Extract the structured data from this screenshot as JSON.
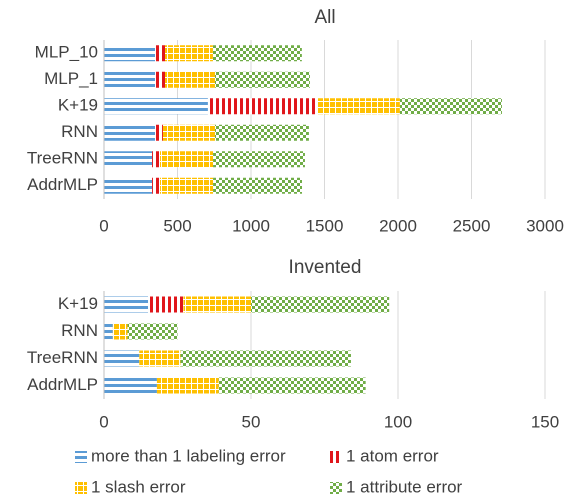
{
  "chart_data": [
    {
      "type": "stacked-barh",
      "title": "All",
      "categories": [
        "MLP_10",
        "MLP_1",
        "K+19",
        "RNN",
        "TreeRNN",
        "AddrMLP"
      ],
      "series": [
        {
          "name": "more than 1 labeling error",
          "color": "#5b9bd5",
          "values": [
            347,
            347,
            707,
            347,
            327,
            327
          ]
        },
        {
          "name": "1 atom error",
          "color": "#e0161b",
          "values": [
            68,
            68,
            748,
            54,
            54,
            54
          ]
        },
        {
          "name": "1 slash error",
          "color": "#ffc000",
          "values": [
            326,
            340,
            558,
            354,
            361,
            361
          ]
        },
        {
          "name": "1 attribute error",
          "color": "#70ad47",
          "values": [
            605,
            646,
            694,
            639,
            625,
            605
          ]
        }
      ],
      "xlim": [
        0,
        3000
      ],
      "xticks": [
        0,
        500,
        1000,
        1500,
        2000,
        2500,
        3000
      ],
      "grid": true
    },
    {
      "type": "stacked-barh",
      "title": "Invented",
      "categories": [
        "K+19",
        "RNN",
        "TreeRNN",
        "AddrMLP"
      ],
      "series": [
        {
          "name": "more than 1 labeling error",
          "color": "#5b9bd5",
          "values": [
            15,
            3,
            12,
            18
          ]
        },
        {
          "name": "1 atom error",
          "color": "#e0161b",
          "values": [
            12,
            0,
            0,
            0
          ]
        },
        {
          "name": "1 slash error",
          "color": "#ffc000",
          "values": [
            23,
            5,
            14,
            21
          ]
        },
        {
          "name": "1 attribute error",
          "color": "#70ad47",
          "values": [
            47,
            17,
            58,
            50
          ]
        }
      ],
      "xlim": [
        0,
        150
      ],
      "xticks": [
        0,
        50,
        100,
        150
      ],
      "grid": true
    }
  ]
}
